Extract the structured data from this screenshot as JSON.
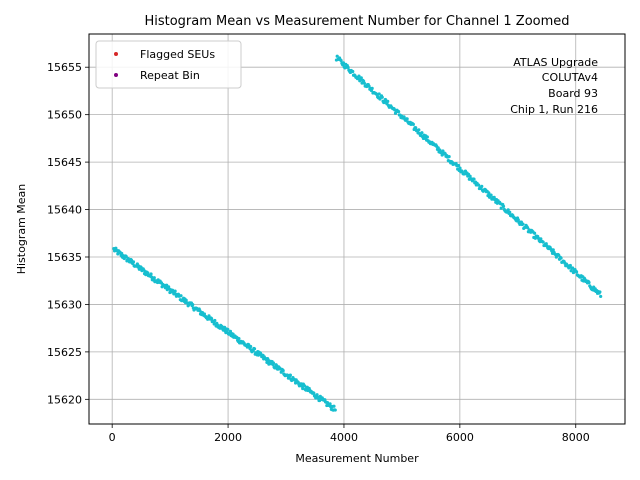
{
  "chart_data": {
    "type": "scatter",
    "title": "Histogram Mean vs Measurement Number for Channel 1 Zoomed",
    "xlabel": "Measurement Number",
    "ylabel": "Histogram Mean",
    "xlim": [
      -400,
      8850
    ],
    "ylim": [
      15617.4,
      15658.5
    ],
    "xticks": [
      0,
      2000,
      4000,
      6000,
      8000
    ],
    "yticks": [
      15620,
      15625,
      15630,
      15635,
      15640,
      15645,
      15650,
      15655
    ],
    "grid": true,
    "legend": {
      "placement": "top-left",
      "entries": [
        {
          "name": "Flagged SEUs",
          "color": "#d62728"
        },
        {
          "name": "Repeat Bin",
          "color": "#800080"
        }
      ]
    },
    "annotation": [
      "ATLAS Upgrade",
      "COLUTAv4",
      "Board 93",
      "Chip 1, Run 216"
    ],
    "series": [
      {
        "color": "#17becf",
        "segments": [
          {
            "x": [
              30,
              3850
            ],
            "y": [
              15635.8,
              15618.9
            ]
          },
          {
            "x": [
              3870,
              8430
            ],
            "y": [
              15656.0,
              15631.0
            ]
          }
        ]
      }
    ]
  }
}
